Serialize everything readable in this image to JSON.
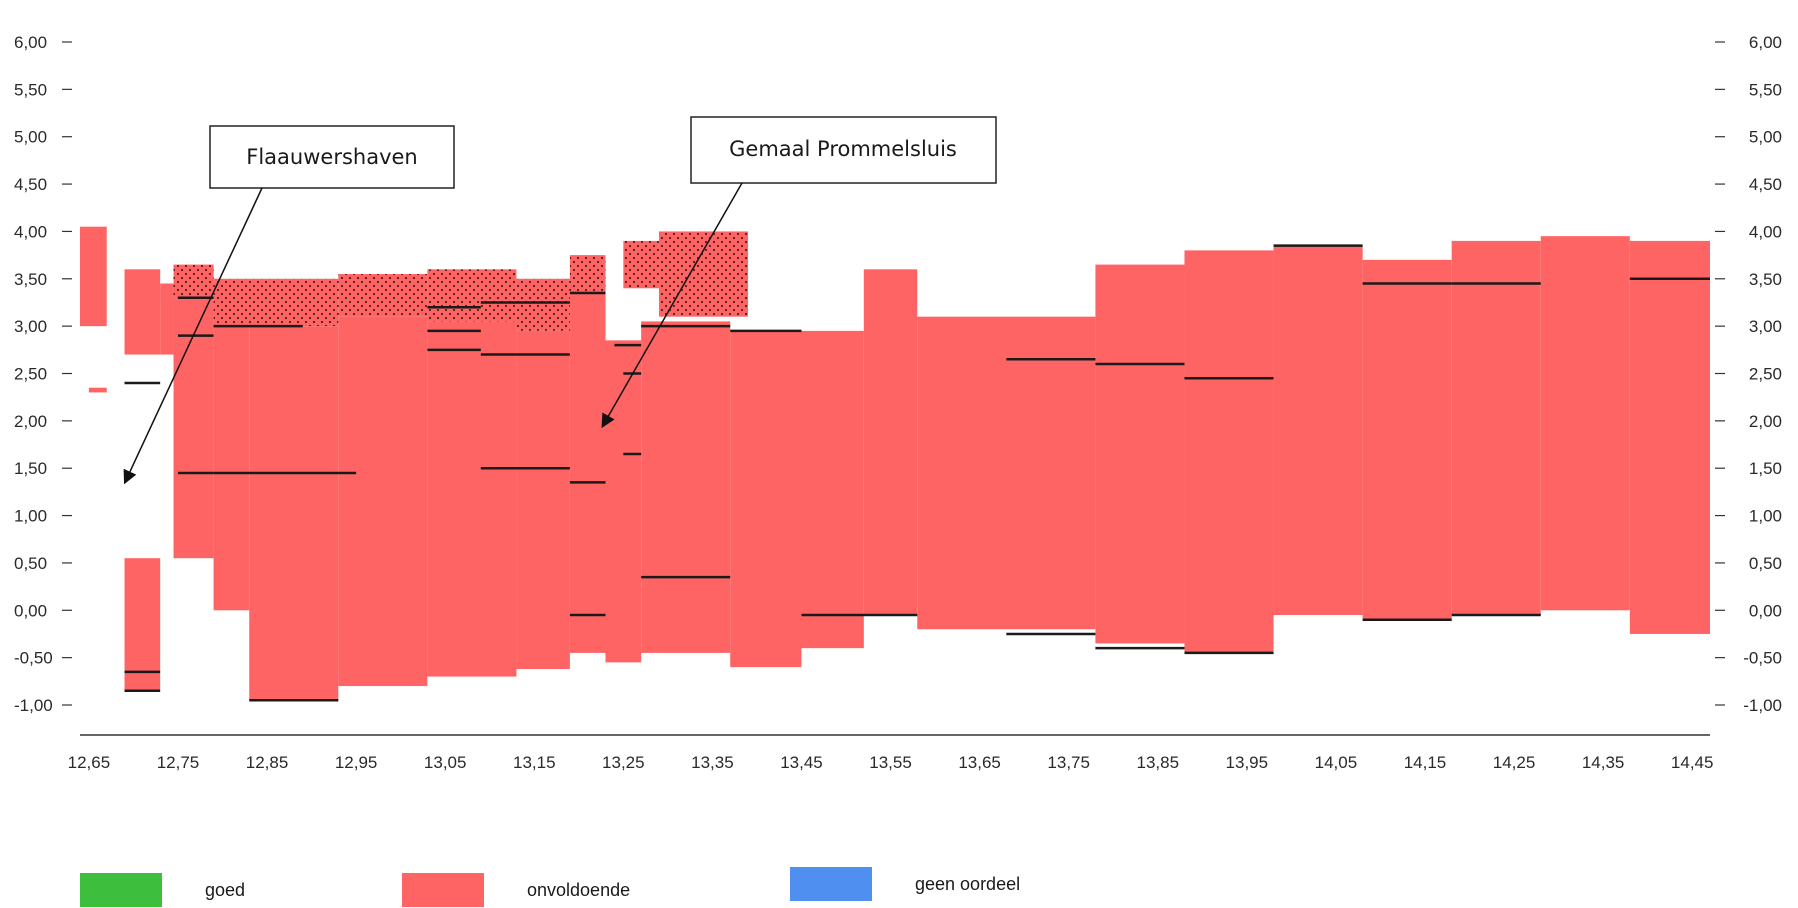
{
  "chart_data": {
    "type": "bar",
    "x_tick_labels": [
      "12,65",
      "12,75",
      "12,85",
      "12,95",
      "13,05",
      "13,15",
      "13,25",
      "13,35",
      "13,45",
      "13,55",
      "13,65",
      "13,75",
      "13,85",
      "13,95",
      "14,05",
      "14,15",
      "14,25",
      "14,35",
      "14,45"
    ],
    "x_ticks": [
      12.65,
      12.75,
      12.85,
      12.95,
      13.05,
      13.15,
      13.25,
      13.35,
      13.45,
      13.55,
      13.65,
      13.75,
      13.85,
      13.95,
      14.05,
      14.15,
      14.25,
      14.35,
      14.45
    ],
    "xlim": [
      12.64,
      14.47
    ],
    "left_y_tick_labels": [
      "6,00",
      "5,50",
      "5,00",
      "4,50",
      "4,00",
      "3,50",
      "3,00",
      "2,50",
      "2,00",
      "1,50",
      "1,00",
      "0,50",
      "0,00",
      "-0,50",
      "-1,00"
    ],
    "right_y_tick_labels": [
      "6,00",
      "5,50",
      "5,00",
      "4,50",
      "4,00",
      "3,50",
      "3,00",
      "2,50",
      "2,00",
      "1,50",
      "1,00",
      "0,50",
      "0,00",
      "-0,50",
      "-1,00"
    ],
    "y_ticks": [
      6.0,
      5.5,
      5.0,
      4.5,
      4.0,
      3.5,
      3.0,
      2.5,
      2.0,
      1.5,
      1.0,
      0.5,
      0.0,
      -0.5,
      -1.0
    ],
    "ylim": [
      -1.0,
      6.0
    ],
    "bands": [
      {
        "x0": 12.64,
        "x1": 12.67,
        "bottom": 3.0,
        "top": 4.05,
        "status": "onvoldoende"
      },
      {
        "x0": 12.65,
        "x1": 12.67,
        "bottom": 2.3,
        "top": 2.35,
        "status": "onvoldoende"
      },
      {
        "x0": 12.69,
        "x1": 12.73,
        "bottom": 2.7,
        "top": 3.6,
        "status": "onvoldoende"
      },
      {
        "x0": 12.73,
        "x1": 12.745,
        "bottom": 2.7,
        "top": 3.45,
        "status": "onvoldoende"
      },
      {
        "x0": 12.745,
        "x1": 12.79,
        "bottom": 0.55,
        "top": 3.3,
        "status": "onvoldoende"
      },
      {
        "x0": 12.69,
        "x1": 12.73,
        "bottom": -0.85,
        "top": 0.55,
        "status": "onvoldoende"
      },
      {
        "x0": 12.79,
        "x1": 12.83,
        "bottom": 0.0,
        "top": 3.0,
        "status": "onvoldoende"
      },
      {
        "x0": 12.83,
        "x1": 12.93,
        "bottom": -0.95,
        "top": 3.0,
        "status": "onvoldoende"
      },
      {
        "x0": 12.93,
        "x1": 13.03,
        "bottom": -0.8,
        "top": 3.1,
        "status": "onvoldoende"
      },
      {
        "x0": 13.03,
        "x1": 13.13,
        "bottom": -0.7,
        "top": 3.05,
        "status": "onvoldoende"
      },
      {
        "x0": 13.13,
        "x1": 13.19,
        "bottom": -0.62,
        "top": 2.95,
        "status": "onvoldoende"
      },
      {
        "x0": 13.19,
        "x1": 13.23,
        "bottom": -0.45,
        "top": 3.35,
        "status": "onvoldoende"
      },
      {
        "x0": 13.23,
        "x1": 13.27,
        "bottom": -0.55,
        "top": 2.85,
        "status": "onvoldoende"
      },
      {
        "x0": 13.27,
        "x1": 13.37,
        "bottom": -0.45,
        "top": 3.05,
        "status": "onvoldoende"
      },
      {
        "x0": 13.37,
        "x1": 13.45,
        "bottom": -0.6,
        "top": 2.95,
        "status": "onvoldoende"
      },
      {
        "x0": 13.45,
        "x1": 13.52,
        "bottom": -0.4,
        "top": 2.95,
        "status": "onvoldoende"
      },
      {
        "x0": 13.52,
        "x1": 13.58,
        "bottom": -0.05,
        "top": 3.6,
        "status": "onvoldoende"
      },
      {
        "x0": 13.58,
        "x1": 13.78,
        "bottom": -0.2,
        "top": 3.1,
        "status": "onvoldoende"
      },
      {
        "x0": 13.78,
        "x1": 13.88,
        "bottom": -0.35,
        "top": 3.65,
        "status": "onvoldoende"
      },
      {
        "x0": 13.88,
        "x1": 13.98,
        "bottom": -0.45,
        "top": 3.8,
        "status": "onvoldoende"
      },
      {
        "x0": 13.98,
        "x1": 14.08,
        "bottom": -0.05,
        "top": 3.85,
        "status": "onvoldoende"
      },
      {
        "x0": 14.08,
        "x1": 14.18,
        "bottom": -0.1,
        "top": 3.7,
        "status": "onvoldoende"
      },
      {
        "x0": 14.18,
        "x1": 14.28,
        "bottom": -0.05,
        "top": 3.9,
        "status": "onvoldoende"
      },
      {
        "x0": 14.28,
        "x1": 14.38,
        "bottom": 0.0,
        "top": 3.95,
        "status": "onvoldoende"
      },
      {
        "x0": 14.38,
        "x1": 14.47,
        "bottom": -0.25,
        "top": 3.9,
        "status": "onvoldoende"
      }
    ],
    "dotted_bands": [
      {
        "x0": 12.745,
        "x1": 12.79,
        "bottom": 3.3,
        "top": 3.65
      },
      {
        "x0": 12.79,
        "x1": 12.93,
        "bottom": 3.0,
        "top": 3.5
      },
      {
        "x0": 12.93,
        "x1": 13.03,
        "bottom": 3.1,
        "top": 3.55
      },
      {
        "x0": 13.03,
        "x1": 13.13,
        "bottom": 3.05,
        "top": 3.6
      },
      {
        "x0": 13.13,
        "x1": 13.19,
        "bottom": 2.95,
        "top": 3.5
      },
      {
        "x0": 13.19,
        "x1": 13.23,
        "bottom": 3.35,
        "top": 3.75
      },
      {
        "x0": 13.25,
        "x1": 13.29,
        "bottom": 3.4,
        "top": 3.9
      },
      {
        "x0": 13.29,
        "x1": 13.39,
        "bottom": 3.1,
        "top": 4.0
      }
    ],
    "level_lines": [
      {
        "x0": 12.75,
        "x1": 12.79,
        "y": 3.3
      },
      {
        "x0": 12.75,
        "x1": 12.79,
        "y": 2.9
      },
      {
        "x0": 12.75,
        "x1": 12.79,
        "y": 1.45
      },
      {
        "x0": 12.79,
        "x1": 12.89,
        "y": 3.0
      },
      {
        "x0": 12.79,
        "x1": 12.95,
        "y": 1.45
      },
      {
        "x0": 13.03,
        "x1": 13.09,
        "y": 3.2
      },
      {
        "x0": 13.03,
        "x1": 13.09,
        "y": 2.95
      },
      {
        "x0": 13.03,
        "x1": 13.09,
        "y": 2.75
      },
      {
        "x0": 13.09,
        "x1": 13.19,
        "y": 3.25
      },
      {
        "x0": 13.09,
        "x1": 13.19,
        "y": 2.7
      },
      {
        "x0": 13.09,
        "x1": 13.19,
        "y": 1.5
      },
      {
        "x0": 13.19,
        "x1": 13.23,
        "y": 3.35
      },
      {
        "x0": 13.19,
        "x1": 13.23,
        "y": 1.35
      },
      {
        "x0": 13.19,
        "x1": 13.23,
        "y": -0.05
      },
      {
        "x0": 13.24,
        "x1": 13.27,
        "y": 2.8
      },
      {
        "x0": 13.25,
        "x1": 13.27,
        "y": 2.5
      },
      {
        "x0": 13.25,
        "x1": 13.27,
        "y": 1.65
      },
      {
        "x0": 13.27,
        "x1": 13.37,
        "y": 3.0
      },
      {
        "x0": 13.27,
        "x1": 13.37,
        "y": 0.35
      },
      {
        "x0": 13.37,
        "x1": 13.45,
        "y": 2.95
      },
      {
        "x0": 13.45,
        "x1": 13.58,
        "y": -0.05
      },
      {
        "x0": 13.68,
        "x1": 13.78,
        "y": -0.25
      },
      {
        "x0": 13.68,
        "x1": 13.78,
        "y": 2.65
      },
      {
        "x0": 13.78,
        "x1": 13.88,
        "y": 2.6
      },
      {
        "x0": 13.78,
        "x1": 13.88,
        "y": -0.4
      },
      {
        "x0": 13.88,
        "x1": 13.98,
        "y": 2.45
      },
      {
        "x0": 13.88,
        "x1": 13.98,
        "y": -0.45
      },
      {
        "x0": 13.98,
        "x1": 14.08,
        "y": 3.85
      },
      {
        "x0": 14.08,
        "x1": 14.18,
        "y": 3.45
      },
      {
        "x0": 14.08,
        "x1": 14.18,
        "y": -0.1
      },
      {
        "x0": 14.18,
        "x1": 14.28,
        "y": 3.45
      },
      {
        "x0": 14.18,
        "x1": 14.28,
        "y": -0.05
      },
      {
        "x0": 14.38,
        "x1": 14.47,
        "y": 3.5
      },
      {
        "x0": 12.69,
        "x1": 12.73,
        "y": -0.65
      },
      {
        "x0": 12.69,
        "x1": 12.73,
        "y": -0.85
      },
      {
        "x0": 12.83,
        "x1": 12.93,
        "y": -0.95
      },
      {
        "x0": 12.69,
        "x1": 12.73,
        "y": 2.4
      }
    ],
    "colors": {
      "goed": "#3dbf3d",
      "onvoldoende": "#ff6464",
      "geen_oordeel": "#4f8fef",
      "level_line": "#1a1a1a",
      "axis": "#333333"
    }
  },
  "callouts": [
    {
      "text": "Flaauwershaven"
    },
    {
      "text": "Gemaal Prommelsluis"
    }
  ],
  "legend": [
    {
      "label": "goed",
      "color": "#3dbf3d"
    },
    {
      "label": "onvoldoende",
      "color": "#ff6464"
    },
    {
      "label": "geen oordeel",
      "color": "#4f8fef"
    }
  ]
}
